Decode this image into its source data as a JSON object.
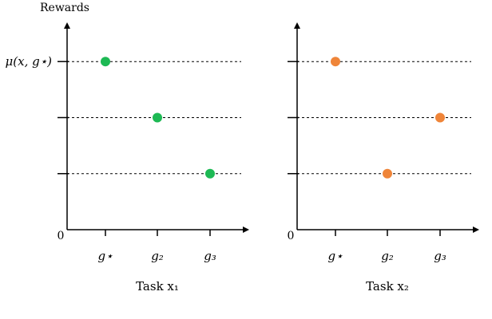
{
  "chart_data": [
    {
      "type": "scatter",
      "title": "",
      "xlabel": "Task x₁",
      "ylabel": "Rewards",
      "origin_label": "0",
      "ytick_label": "μ(x, g⋆)",
      "categories": [
        "g⋆",
        "g₂",
        "g₃"
      ],
      "values": [
        3,
        2,
        1
      ],
      "ylim": [
        0,
        3.7
      ],
      "grid": "horizontal dashed at each reward level",
      "color": "#1db954"
    },
    {
      "type": "scatter",
      "title": "",
      "xlabel": "Task x₂",
      "ylabel": "",
      "origin_label": "0",
      "ytick_label": "",
      "categories": [
        "g⋆",
        "g₂",
        "g₃"
      ],
      "values": [
        3,
        1,
        2
      ],
      "ylim": [
        0,
        3.7
      ],
      "grid": "horizontal dashed at each reward level",
      "color": "#ef8539"
    }
  ]
}
